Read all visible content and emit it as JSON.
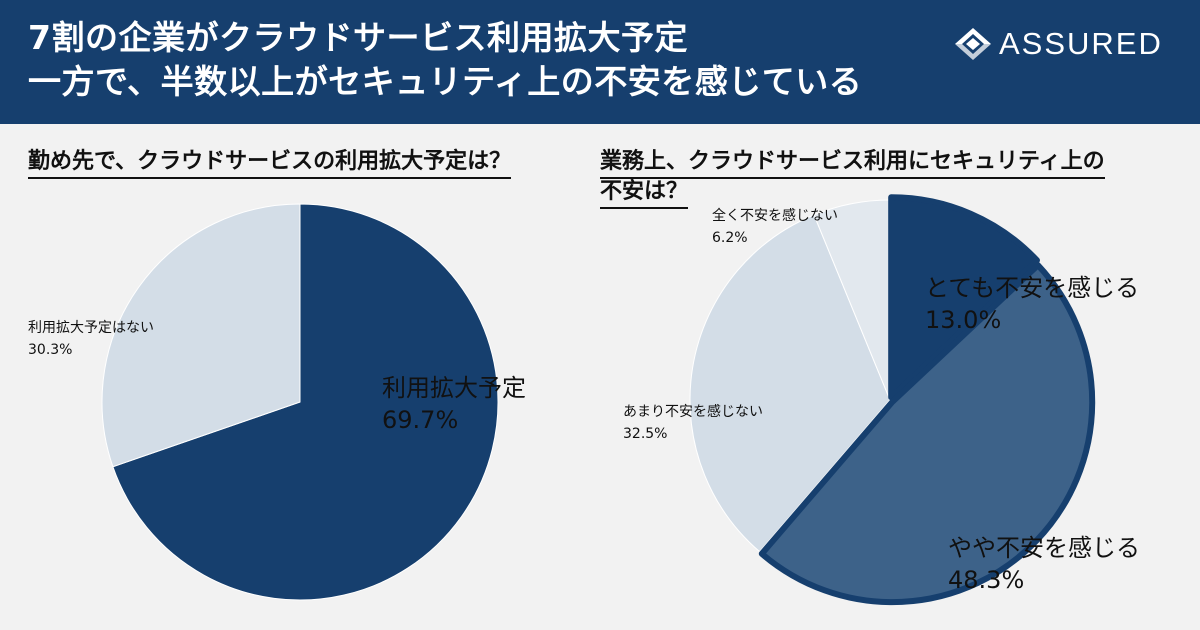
{
  "header": {
    "title_line1": "7割の企業がクラウドサービス利用拡大予定",
    "title_line2": "一方で、半数以上がセキュリティ上の不安を感じている",
    "logo_text": "ASSURED"
  },
  "colors": {
    "header_bg": "#163f6e",
    "dark_navy": "#163f6e",
    "mid_blue": "#3d6289",
    "light_gray_blue": "#d3dde7",
    "lightest_gray_blue": "#e2e8ee"
  },
  "chart_data": [
    {
      "type": "pie",
      "title": "勤め先で、クラウドサービスの利用拡大予定は？",
      "slices": [
        {
          "label": "利用拡大予定",
          "value_text": "69.7%",
          "value": 69.7,
          "color": "#163f6e"
        },
        {
          "label": "利用拡大予定はない",
          "value_text": "30.3%",
          "value": 30.3,
          "color": "#d3dde7"
        }
      ]
    },
    {
      "type": "pie",
      "title_line1": "業務上、クラウドサービス利用にセキュリティ上の",
      "title_line2": "不安は？",
      "slices": [
        {
          "label": "とても不安を感じる",
          "value_text": "13.0%",
          "value": 13.0,
          "color": "#163f6e"
        },
        {
          "label": "やや不安を感じる",
          "value_text": "48.3%",
          "value": 48.3,
          "color": "#3d6289"
        },
        {
          "label": "あまり不安を感じない",
          "value_text": "32.5%",
          "value": 32.5,
          "color": "#d3dde7"
        },
        {
          "label": "全く不安を感じない",
          "value_text": "6.2%",
          "value": 6.2,
          "color": "#e2e8ee"
        }
      ]
    }
  ]
}
